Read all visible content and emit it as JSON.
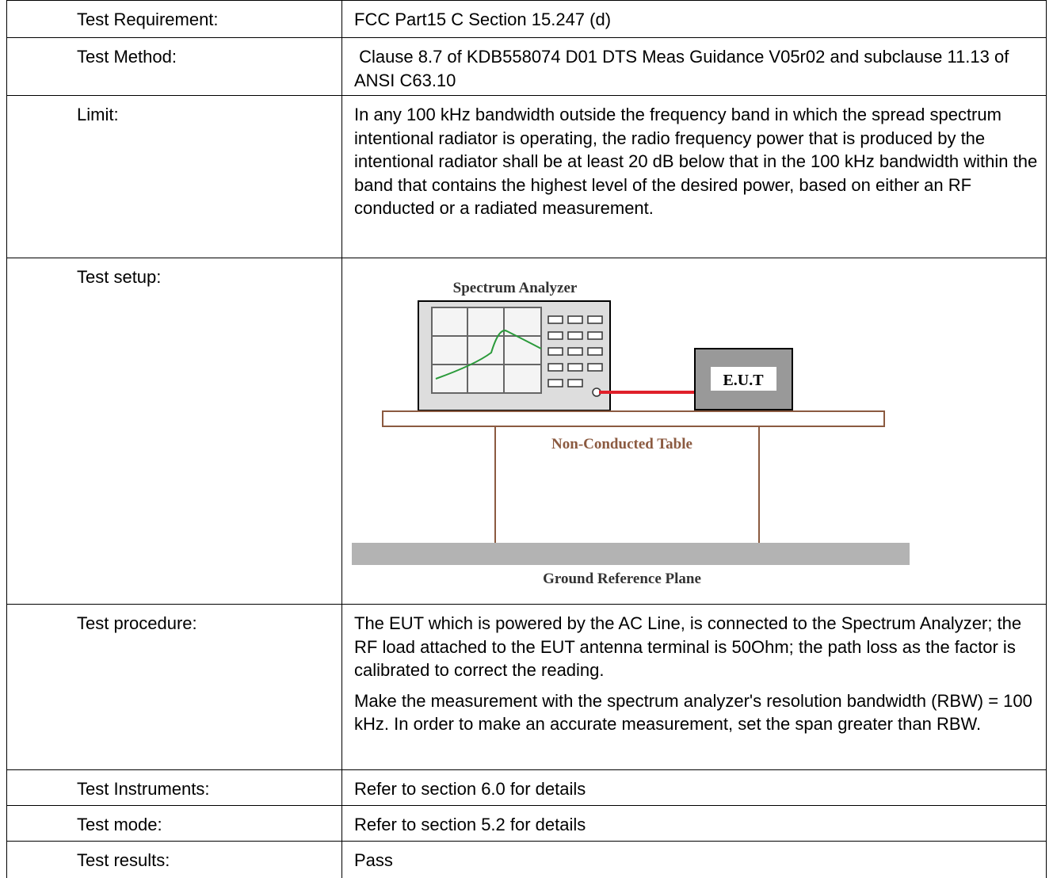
{
  "table": {
    "rows": [
      {
        "label": "Test Requirement:",
        "value": [
          "FCC Part15 C Section 15.247 (d)"
        ]
      },
      {
        "label": "Test Method:",
        "value": [
          " Clause 8.7 of KDB558074 D01 DTS Meas Guidance V05r02 and subclause 11.13 of ANSI C63.10"
        ]
      },
      {
        "label": "Limit:",
        "value": [
          "In any 100 kHz bandwidth outside the frequency band in which the spread spectrum intentional radiator is operating, the radio frequency power that is produced by the intentional radiator shall be at least 20 dB below that in the 100 kHz bandwidth within the band that contains the highest level of the desired power, based on either an RF conducted or a radiated measurement."
        ]
      },
      {
        "label": "Test setup:",
        "diagram": {
          "analyzer": "Spectrum Analyzer",
          "eut": "E.U.T",
          "table": "Non-Conducted Table",
          "ground": "Ground Reference Plane"
        }
      },
      {
        "label": "Test procedure:",
        "value": [
          "The EUT which is powered by the AC Line, is connected to the Spectrum Analyzer; the RF load attached to the EUT antenna terminal is 50Ohm; the path loss as the factor is calibrated to correct the reading.",
          "Make the measurement with the spectrum analyzer's resolution bandwidth (RBW) = 100 kHz. In order to make an accurate measurement, set the span greater than RBW."
        ]
      },
      {
        "label": "Test Instruments:",
        "value": [
          "Refer to section 6.0 for details"
        ]
      },
      {
        "label": "Test mode:",
        "value": [
          "Refer to section 5.2 for details"
        ]
      },
      {
        "label": "Test results:",
        "value": [
          "Pass"
        ]
      }
    ]
  }
}
